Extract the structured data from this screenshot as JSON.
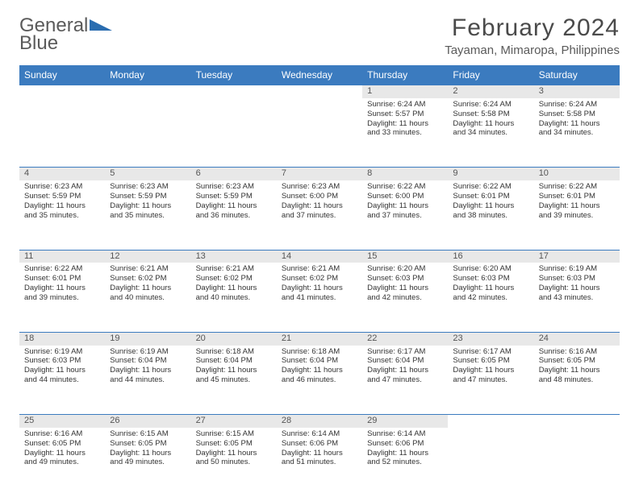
{
  "logo": {
    "word1": "General",
    "word2": "Blue"
  },
  "title": "February 2024",
  "location": "Tayaman, Mimaropa, Philippines",
  "colors": {
    "header_bg": "#3b7bbf",
    "header_text": "#ffffff",
    "daynum_bg": "#e8e8e8",
    "text": "#333333",
    "logo_gray": "#5a5a5a",
    "logo_blue": "#3b7bbf",
    "border": "#3b7bbf"
  },
  "typography": {
    "title_fontsize": 30,
    "location_fontsize": 15,
    "dayheader_fontsize": 12,
    "cell_fontsize": 9.5
  },
  "day_headers": [
    "Sunday",
    "Monday",
    "Tuesday",
    "Wednesday",
    "Thursday",
    "Friday",
    "Saturday"
  ],
  "weeks": [
    [
      null,
      null,
      null,
      null,
      {
        "n": "1",
        "sr": "6:24 AM",
        "ss": "5:57 PM",
        "dl": "11 hours and 33 minutes."
      },
      {
        "n": "2",
        "sr": "6:24 AM",
        "ss": "5:58 PM",
        "dl": "11 hours and 34 minutes."
      },
      {
        "n": "3",
        "sr": "6:24 AM",
        "ss": "5:58 PM",
        "dl": "11 hours and 34 minutes."
      }
    ],
    [
      {
        "n": "4",
        "sr": "6:23 AM",
        "ss": "5:59 PM",
        "dl": "11 hours and 35 minutes."
      },
      {
        "n": "5",
        "sr": "6:23 AM",
        "ss": "5:59 PM",
        "dl": "11 hours and 35 minutes."
      },
      {
        "n": "6",
        "sr": "6:23 AM",
        "ss": "5:59 PM",
        "dl": "11 hours and 36 minutes."
      },
      {
        "n": "7",
        "sr": "6:23 AM",
        "ss": "6:00 PM",
        "dl": "11 hours and 37 minutes."
      },
      {
        "n": "8",
        "sr": "6:22 AM",
        "ss": "6:00 PM",
        "dl": "11 hours and 37 minutes."
      },
      {
        "n": "9",
        "sr": "6:22 AM",
        "ss": "6:01 PM",
        "dl": "11 hours and 38 minutes."
      },
      {
        "n": "10",
        "sr": "6:22 AM",
        "ss": "6:01 PM",
        "dl": "11 hours and 39 minutes."
      }
    ],
    [
      {
        "n": "11",
        "sr": "6:22 AM",
        "ss": "6:01 PM",
        "dl": "11 hours and 39 minutes."
      },
      {
        "n": "12",
        "sr": "6:21 AM",
        "ss": "6:02 PM",
        "dl": "11 hours and 40 minutes."
      },
      {
        "n": "13",
        "sr": "6:21 AM",
        "ss": "6:02 PM",
        "dl": "11 hours and 40 minutes."
      },
      {
        "n": "14",
        "sr": "6:21 AM",
        "ss": "6:02 PM",
        "dl": "11 hours and 41 minutes."
      },
      {
        "n": "15",
        "sr": "6:20 AM",
        "ss": "6:03 PM",
        "dl": "11 hours and 42 minutes."
      },
      {
        "n": "16",
        "sr": "6:20 AM",
        "ss": "6:03 PM",
        "dl": "11 hours and 42 minutes."
      },
      {
        "n": "17",
        "sr": "6:19 AM",
        "ss": "6:03 PM",
        "dl": "11 hours and 43 minutes."
      }
    ],
    [
      {
        "n": "18",
        "sr": "6:19 AM",
        "ss": "6:03 PM",
        "dl": "11 hours and 44 minutes."
      },
      {
        "n": "19",
        "sr": "6:19 AM",
        "ss": "6:04 PM",
        "dl": "11 hours and 44 minutes."
      },
      {
        "n": "20",
        "sr": "6:18 AM",
        "ss": "6:04 PM",
        "dl": "11 hours and 45 minutes."
      },
      {
        "n": "21",
        "sr": "6:18 AM",
        "ss": "6:04 PM",
        "dl": "11 hours and 46 minutes."
      },
      {
        "n": "22",
        "sr": "6:17 AM",
        "ss": "6:04 PM",
        "dl": "11 hours and 47 minutes."
      },
      {
        "n": "23",
        "sr": "6:17 AM",
        "ss": "6:05 PM",
        "dl": "11 hours and 47 minutes."
      },
      {
        "n": "24",
        "sr": "6:16 AM",
        "ss": "6:05 PM",
        "dl": "11 hours and 48 minutes."
      }
    ],
    [
      {
        "n": "25",
        "sr": "6:16 AM",
        "ss": "6:05 PM",
        "dl": "11 hours and 49 minutes."
      },
      {
        "n": "26",
        "sr": "6:15 AM",
        "ss": "6:05 PM",
        "dl": "11 hours and 49 minutes."
      },
      {
        "n": "27",
        "sr": "6:15 AM",
        "ss": "6:05 PM",
        "dl": "11 hours and 50 minutes."
      },
      {
        "n": "28",
        "sr": "6:14 AM",
        "ss": "6:06 PM",
        "dl": "11 hours and 51 minutes."
      },
      {
        "n": "29",
        "sr": "6:14 AM",
        "ss": "6:06 PM",
        "dl": "11 hours and 52 minutes."
      },
      null,
      null
    ]
  ],
  "labels": {
    "sunrise": "Sunrise:",
    "sunset": "Sunset:",
    "daylight": "Daylight:"
  }
}
